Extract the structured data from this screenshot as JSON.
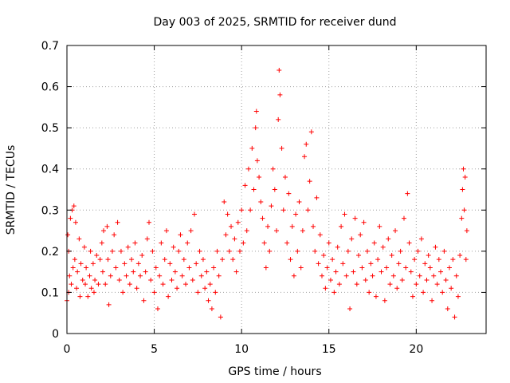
{
  "chart_data": {
    "type": "scatter",
    "title": "Day 003 of 2025, SRMTID for receiver dund",
    "xlabel": "GPS time / hours",
    "ylabel": "SRMTID / TECUs",
    "xlim": [
      0,
      24
    ],
    "ylim": [
      0,
      0.7
    ],
    "xticks": [
      0,
      5,
      10,
      15,
      20
    ],
    "xtick_labels": [
      "0",
      "5",
      "10",
      "15",
      "20"
    ],
    "yticks": [
      0,
      0.1,
      0.2,
      0.3,
      0.4,
      0.5,
      0.6,
      0.7
    ],
    "ytick_labels": [
      "0",
      "0.1",
      "0.2",
      "0.3",
      "0.4",
      "0.5",
      "0.6",
      "0.7"
    ],
    "grid": true,
    "marker": "+",
    "color": "#ff0000",
    "series": [
      {
        "name": "SRMTID",
        "points": [
          [
            0.0,
            0.08
          ],
          [
            0.05,
            0.24
          ],
          [
            0.1,
            0.1
          ],
          [
            0.1,
            0.2
          ],
          [
            0.15,
            0.14
          ],
          [
            0.2,
            0.28
          ],
          [
            0.25,
            0.12
          ],
          [
            0.3,
            0.3
          ],
          [
            0.35,
            0.16
          ],
          [
            0.4,
            0.31
          ],
          [
            0.45,
            0.18
          ],
          [
            0.5,
            0.27
          ],
          [
            0.55,
            0.11
          ],
          [
            0.6,
            0.15
          ],
          [
            0.7,
            0.23
          ],
          [
            0.75,
            0.09
          ],
          [
            0.8,
            0.17
          ],
          [
            0.9,
            0.13
          ],
          [
            1.0,
            0.21
          ],
          [
            1.05,
            0.12
          ],
          [
            1.1,
            0.16
          ],
          [
            1.2,
            0.09
          ],
          [
            1.3,
            0.14
          ],
          [
            1.35,
            0.2
          ],
          [
            1.4,
            0.11
          ],
          [
            1.5,
            0.17
          ],
          [
            1.55,
            0.1
          ],
          [
            1.6,
            0.13
          ],
          [
            1.7,
            0.19
          ],
          [
            1.8,
            0.12
          ],
          [
            1.9,
            0.18
          ],
          [
            2.0,
            0.22
          ],
          [
            2.05,
            0.15
          ],
          [
            2.1,
            0.25
          ],
          [
            2.2,
            0.12
          ],
          [
            2.3,
            0.26
          ],
          [
            2.35,
            0.18
          ],
          [
            2.4,
            0.07
          ],
          [
            2.5,
            0.14
          ],
          [
            2.6,
            0.2
          ],
          [
            2.7,
            0.24
          ],
          [
            2.8,
            0.16
          ],
          [
            2.9,
            0.27
          ],
          [
            3.0,
            0.13
          ],
          [
            3.1,
            0.2
          ],
          [
            3.2,
            0.1
          ],
          [
            3.3,
            0.17
          ],
          [
            3.4,
            0.14
          ],
          [
            3.5,
            0.21
          ],
          [
            3.6,
            0.12
          ],
          [
            3.7,
            0.18
          ],
          [
            3.8,
            0.15
          ],
          [
            3.9,
            0.22
          ],
          [
            4.0,
            0.11
          ],
          [
            4.1,
            0.17
          ],
          [
            4.2,
            0.14
          ],
          [
            4.3,
            0.19
          ],
          [
            4.4,
            0.08
          ],
          [
            4.5,
            0.15
          ],
          [
            4.6,
            0.23
          ],
          [
            4.7,
            0.27
          ],
          [
            4.8,
            0.13
          ],
          [
            4.9,
            0.2
          ],
          [
            5.0,
            0.1
          ],
          [
            5.1,
            0.16
          ],
          [
            5.2,
            0.06
          ],
          [
            5.3,
            0.14
          ],
          [
            5.4,
            0.22
          ],
          [
            5.5,
            0.12
          ],
          [
            5.6,
            0.18
          ],
          [
            5.7,
            0.25
          ],
          [
            5.8,
            0.09
          ],
          [
            5.9,
            0.17
          ],
          [
            6.0,
            0.13
          ],
          [
            6.1,
            0.21
          ],
          [
            6.2,
            0.15
          ],
          [
            6.3,
            0.11
          ],
          [
            6.4,
            0.2
          ],
          [
            6.5,
            0.24
          ],
          [
            6.6,
            0.14
          ],
          [
            6.7,
            0.18
          ],
          [
            6.8,
            0.12
          ],
          [
            6.9,
            0.22
          ],
          [
            7.0,
            0.16
          ],
          [
            7.1,
            0.25
          ],
          [
            7.2,
            0.13
          ],
          [
            7.3,
            0.29
          ],
          [
            7.4,
            0.17
          ],
          [
            7.5,
            0.1
          ],
          [
            7.6,
            0.2
          ],
          [
            7.7,
            0.14
          ],
          [
            7.8,
            0.18
          ],
          [
            7.9,
            0.11
          ],
          [
            8.0,
            0.15
          ],
          [
            8.1,
            0.08
          ],
          [
            8.2,
            0.12
          ],
          [
            8.3,
            0.06
          ],
          [
            8.4,
            0.16
          ],
          [
            8.5,
            0.1
          ],
          [
            8.6,
            0.2
          ],
          [
            8.7,
            0.14
          ],
          [
            8.8,
            0.04
          ],
          [
            8.9,
            0.18
          ],
          [
            9.0,
            0.32
          ],
          [
            9.1,
            0.24
          ],
          [
            9.2,
            0.29
          ],
          [
            9.3,
            0.2
          ],
          [
            9.4,
            0.26
          ],
          [
            9.5,
            0.18
          ],
          [
            9.6,
            0.23
          ],
          [
            9.7,
            0.15
          ],
          [
            9.8,
            0.27
          ],
          [
            9.9,
            0.2
          ],
          [
            10.0,
            0.3
          ],
          [
            10.1,
            0.22
          ],
          [
            10.2,
            0.36
          ],
          [
            10.3,
            0.25
          ],
          [
            10.4,
            0.4
          ],
          [
            10.5,
            0.3
          ],
          [
            10.6,
            0.45
          ],
          [
            10.7,
            0.35
          ],
          [
            10.8,
            0.5
          ],
          [
            10.85,
            0.54
          ],
          [
            10.9,
            0.42
          ],
          [
            11.0,
            0.38
          ],
          [
            11.1,
            0.32
          ],
          [
            11.2,
            0.28
          ],
          [
            11.3,
            0.22
          ],
          [
            11.4,
            0.16
          ],
          [
            11.5,
            0.26
          ],
          [
            11.6,
            0.2
          ],
          [
            11.7,
            0.31
          ],
          [
            11.8,
            0.4
          ],
          [
            11.9,
            0.35
          ],
          [
            12.0,
            0.25
          ],
          [
            12.1,
            0.52
          ],
          [
            12.15,
            0.64
          ],
          [
            12.2,
            0.58
          ],
          [
            12.3,
            0.45
          ],
          [
            12.4,
            0.3
          ],
          [
            12.5,
            0.38
          ],
          [
            12.6,
            0.22
          ],
          [
            12.7,
            0.34
          ],
          [
            12.8,
            0.18
          ],
          [
            12.9,
            0.26
          ],
          [
            13.0,
            0.14
          ],
          [
            13.1,
            0.29
          ],
          [
            13.2,
            0.2
          ],
          [
            13.3,
            0.32
          ],
          [
            13.4,
            0.16
          ],
          [
            13.5,
            0.25
          ],
          [
            13.6,
            0.43
          ],
          [
            13.7,
            0.46
          ],
          [
            13.8,
            0.3
          ],
          [
            13.9,
            0.37
          ],
          [
            14.0,
            0.49
          ],
          [
            14.1,
            0.26
          ],
          [
            14.2,
            0.2
          ],
          [
            14.3,
            0.33
          ],
          [
            14.4,
            0.17
          ],
          [
            14.5,
            0.24
          ],
          [
            14.6,
            0.14
          ],
          [
            14.7,
            0.19
          ],
          [
            14.8,
            0.11
          ],
          [
            14.9,
            0.16
          ],
          [
            15.0,
            0.22
          ],
          [
            15.1,
            0.13
          ],
          [
            15.2,
            0.18
          ],
          [
            15.3,
            0.1
          ],
          [
            15.4,
            0.15
          ],
          [
            15.5,
            0.21
          ],
          [
            15.6,
            0.12
          ],
          [
            15.7,
            0.26
          ],
          [
            15.8,
            0.17
          ],
          [
            15.9,
            0.29
          ],
          [
            16.0,
            0.14
          ],
          [
            16.1,
            0.2
          ],
          [
            16.2,
            0.06
          ],
          [
            16.3,
            0.23
          ],
          [
            16.4,
            0.15
          ],
          [
            16.5,
            0.28
          ],
          [
            16.6,
            0.12
          ],
          [
            16.7,
            0.19
          ],
          [
            16.8,
            0.24
          ],
          [
            16.9,
            0.16
          ],
          [
            17.0,
            0.27
          ],
          [
            17.1,
            0.13
          ],
          [
            17.2,
            0.2
          ],
          [
            17.3,
            0.1
          ],
          [
            17.4,
            0.17
          ],
          [
            17.5,
            0.14
          ],
          [
            17.6,
            0.22
          ],
          [
            17.7,
            0.09
          ],
          [
            17.8,
            0.18
          ],
          [
            17.9,
            0.26
          ],
          [
            18.0,
            0.15
          ],
          [
            18.1,
            0.21
          ],
          [
            18.2,
            0.08
          ],
          [
            18.3,
            0.16
          ],
          [
            18.4,
            0.23
          ],
          [
            18.5,
            0.12
          ],
          [
            18.6,
            0.19
          ],
          [
            18.7,
            0.14
          ],
          [
            18.8,
            0.25
          ],
          [
            18.9,
            0.11
          ],
          [
            19.0,
            0.17
          ],
          [
            19.1,
            0.2
          ],
          [
            19.2,
            0.13
          ],
          [
            19.3,
            0.28
          ],
          [
            19.4,
            0.16
          ],
          [
            19.5,
            0.34
          ],
          [
            19.6,
            0.22
          ],
          [
            19.7,
            0.15
          ],
          [
            19.8,
            0.09
          ],
          [
            19.9,
            0.18
          ],
          [
            20.0,
            0.12
          ],
          [
            20.1,
            0.2
          ],
          [
            20.2,
            0.14
          ],
          [
            20.3,
            0.23
          ],
          [
            20.4,
            0.1
          ],
          [
            20.5,
            0.17
          ],
          [
            20.6,
            0.13
          ],
          [
            20.7,
            0.19
          ],
          [
            20.8,
            0.16
          ],
          [
            20.9,
            0.08
          ],
          [
            21.0,
            0.14
          ],
          [
            21.1,
            0.21
          ],
          [
            21.2,
            0.12
          ],
          [
            21.3,
            0.18
          ],
          [
            21.4,
            0.15
          ],
          [
            21.5,
            0.1
          ],
          [
            21.6,
            0.2
          ],
          [
            21.7,
            0.13
          ],
          [
            21.8,
            0.06
          ],
          [
            21.9,
            0.16
          ],
          [
            22.0,
            0.11
          ],
          [
            22.1,
            0.18
          ],
          [
            22.2,
            0.04
          ],
          [
            22.3,
            0.14
          ],
          [
            22.4,
            0.09
          ],
          [
            22.5,
            0.19
          ],
          [
            22.6,
            0.28
          ],
          [
            22.65,
            0.35
          ],
          [
            22.7,
            0.4
          ],
          [
            22.75,
            0.3
          ],
          [
            22.8,
            0.38
          ],
          [
            22.85,
            0.18
          ],
          [
            22.9,
            0.25
          ]
        ]
      }
    ]
  }
}
